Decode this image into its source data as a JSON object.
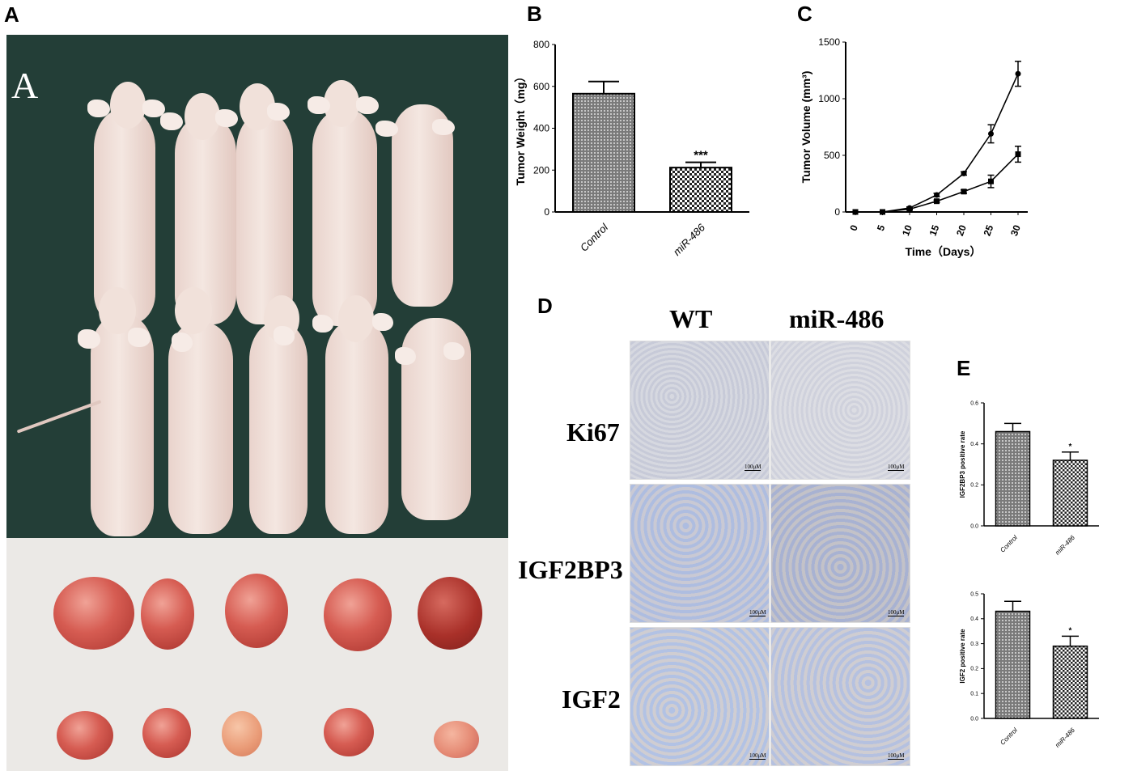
{
  "panels": {
    "a": "A",
    "b": "B",
    "c": "C",
    "d": "D",
    "e": "E"
  },
  "photo": {
    "inset_label": "A"
  },
  "ihc": {
    "columns": [
      "WT",
      "miR-486"
    ],
    "rows": [
      "Ki67",
      "IGF2BP3",
      "IGF2"
    ],
    "scale_bar": "100μM"
  },
  "colors": {
    "bar_fill_dark": "#555555",
    "bar_fill_light": "#ffffff",
    "photo_background": "#233e37",
    "foam_background": "#ebe9e6"
  },
  "chart_data": [
    {
      "id": "B",
      "type": "bar",
      "categories": [
        "Control",
        "miR-486"
      ],
      "values": [
        565,
        212
      ],
      "errors": [
        58,
        25
      ],
      "ylabel": "Tumor  Weight（mg）",
      "ylim": [
        0,
        800
      ],
      "yticks": [
        "0",
        "200",
        "400",
        "600",
        "800"
      ],
      "significance": [
        "",
        "***"
      ]
    },
    {
      "id": "C",
      "type": "line",
      "x": [
        0,
        5,
        10,
        15,
        20,
        25,
        30
      ],
      "xticks": [
        "0",
        "5",
        "10",
        "15",
        "20",
        "25",
        "30"
      ],
      "series": [
        {
          "values": [
            0,
            0,
            35,
            150,
            340,
            690,
            1220
          ],
          "errors": [
            0,
            0,
            10,
            15,
            15,
            80,
            110
          ],
          "marker": "circle"
        },
        {
          "values": [
            0,
            0,
            25,
            95,
            180,
            270,
            510
          ],
          "errors": [
            0,
            0,
            8,
            10,
            15,
            55,
            70
          ],
          "marker": "square"
        }
      ],
      "xlabel": "Time（Days）",
      "ylabel": "Tumor Volume (mm³)",
      "ylim": [
        0,
        1500
      ],
      "yticks": [
        "0",
        "500",
        "1000",
        "1500"
      ]
    },
    {
      "id": "E1",
      "type": "bar",
      "categories": [
        "Control",
        "miR-486"
      ],
      "values": [
        0.46,
        0.32
      ],
      "errors": [
        0.04,
        0.04
      ],
      "ylabel": "IGF2BP3 positive rate",
      "ylim": [
        0,
        0.6
      ],
      "yticks": [
        "0.0",
        "0.2",
        "0.4",
        "0.6"
      ],
      "significance": [
        "",
        "*"
      ]
    },
    {
      "id": "E2",
      "type": "bar",
      "categories": [
        "Control",
        "miR-486"
      ],
      "values": [
        0.43,
        0.29
      ],
      "errors": [
        0.04,
        0.04
      ],
      "ylabel": "IGF2 positive rate",
      "ylim": [
        0,
        0.5
      ],
      "yticks": [
        "0.0",
        "0.1",
        "0.2",
        "0.3",
        "0.4",
        "0.5"
      ],
      "significance": [
        "",
        "*"
      ]
    }
  ]
}
